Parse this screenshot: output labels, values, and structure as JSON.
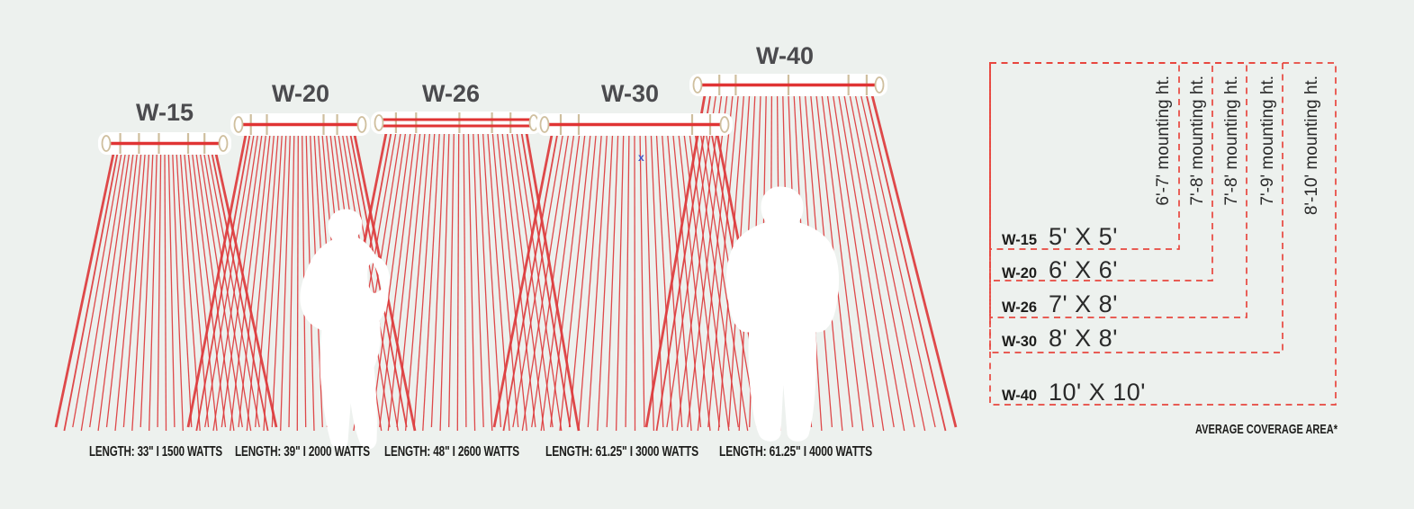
{
  "background": "#edf1ee",
  "colors": {
    "ray_red": "#dd3a3c",
    "bar_red": "#e03434",
    "bracket_tan": "#cfbf9e",
    "label_gray": "#4b4b4e",
    "text_black": "#1d1d1b",
    "dash_red": "#e8473f",
    "marker_blue": "#4053c8",
    "silhouette_white": "#ffffff"
  },
  "models": [
    {
      "name": "W-15",
      "spec": "LENGTH: 33\" I 1500 WATTS",
      "coverage": "5' X 5'",
      "mounting": "6'-7' mounting ht."
    },
    {
      "name": "W-20",
      "spec": "LENGTH: 39\" I 2000 WATTS",
      "coverage": "6' X 6'",
      "mounting": "7'-8' mounting ht."
    },
    {
      "name": "W-26",
      "spec": "LENGTH: 48\" I 2600 WATTS",
      "coverage": "7' X 8'",
      "mounting": "7'-8' mounting ht."
    },
    {
      "name": "W-30",
      "spec": "LENGTH: 61.25\" I 3000 WATTS",
      "coverage": "8' X 8'",
      "mounting": "7'-9' mounting ht."
    },
    {
      "name": "W-40",
      "spec": "LENGTH: 61.25\" I 4000 WATTS",
      "coverage": "10' X 10'",
      "mounting": "8'-10' mounting ht."
    }
  ],
  "table_footnote": "AVERAGE COVERAGE AREA*",
  "stray_marker": "x"
}
